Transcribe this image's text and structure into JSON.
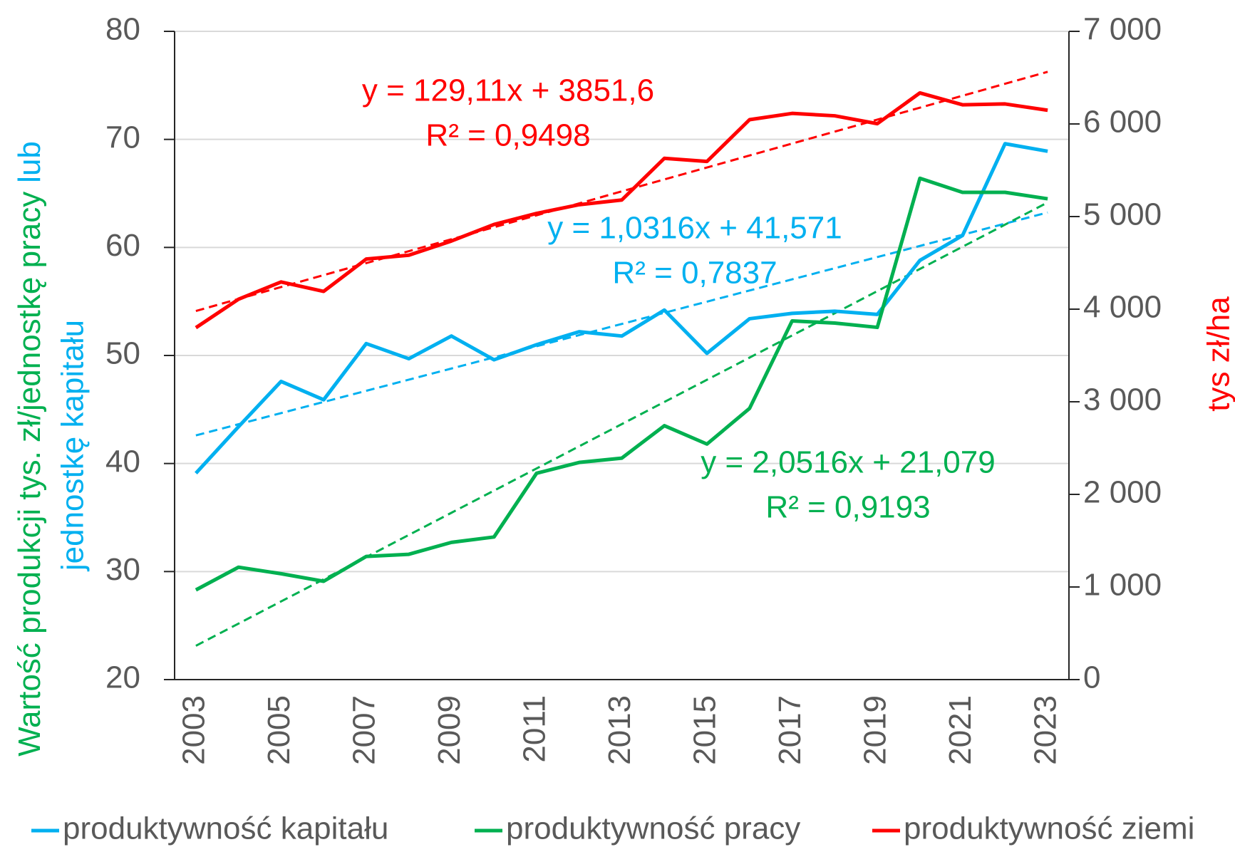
{
  "chart_data": {
    "type": "line",
    "categories": [
      "2003",
      null,
      "2005",
      null,
      "2007",
      null,
      "2009",
      null,
      "2011",
      null,
      "2013",
      null,
      "2015",
      null,
      "2017",
      null,
      "2019",
      null,
      "2021",
      null,
      "2023"
    ],
    "series": [
      {
        "name": "produktywność kapitału",
        "color": "#00b0f0",
        "values": [
          39.1,
          43.4,
          47.6,
          45.9,
          51.1,
          49.7,
          51.8,
          49.6,
          51.0,
          52.2,
          51.8,
          54.2,
          50.2,
          53.4,
          53.9,
          54.1,
          53.8,
          58.8,
          61.1,
          69.6,
          68.9
        ]
      },
      {
        "name": "produktywność pracy",
        "color": "#00b050",
        "values": [
          28.3,
          30.4,
          29.8,
          29.1,
          31.4,
          31.6,
          32.7,
          33.2,
          39.1,
          40.1,
          40.5,
          43.5,
          41.8,
          45.1,
          53.2,
          53.0,
          52.6,
          66.4,
          65.1,
          65.1,
          64.5
        ]
      },
      {
        "name": "produktywność ziemi",
        "color": "#ff0000",
        "axis": "y2",
        "values": [
          3800,
          4107,
          4294,
          4192,
          4541,
          4583,
          4736,
          4915,
          5034,
          5128,
          5179,
          5629,
          5595,
          6046,
          6114,
          6088,
          6003,
          6335,
          6207,
          6216,
          6148
        ]
      }
    ],
    "trendlines": [
      {
        "series": 2,
        "slope": 129.11,
        "intercept": 3851.6,
        "equation": "y = 129,11x + 3851,6",
        "r2": "R² = 0,9498"
      },
      {
        "series": 0,
        "slope": 1.0316,
        "intercept": 41.571,
        "equation": "y = 1,0316x + 41,571",
        "r2": "R² = 0,7837"
      },
      {
        "series": 1,
        "slope": 2.0516,
        "intercept": 21.079,
        "equation": "y = 2,0516x + 21,079",
        "r2": "R² = 0,9193"
      }
    ],
    "ylabel": [
      "Wartość produkcji tys. zł/jednostkę pracy",
      "lub",
      "jednostkę kapitału"
    ],
    "y2label": "tys zł/ha",
    "ylim": [
      20,
      80
    ],
    "yticks": [
      20,
      30,
      40,
      50,
      60,
      70,
      80
    ],
    "y2lim": [
      0,
      7000
    ],
    "y2ticks": [
      0,
      {
        "value": 1000,
        "label": "1 000"
      },
      {
        "value": 2000,
        "label": "2 000"
      },
      {
        "value": 3000,
        "label": "3 000"
      },
      {
        "value": 4000,
        "label": "4 000"
      },
      {
        "value": 5000,
        "label": "5 000"
      },
      {
        "value": 6000,
        "label": "6 000"
      },
      {
        "value": 7000,
        "label": "7 000"
      }
    ],
    "grid": true,
    "legend": "bottom"
  }
}
